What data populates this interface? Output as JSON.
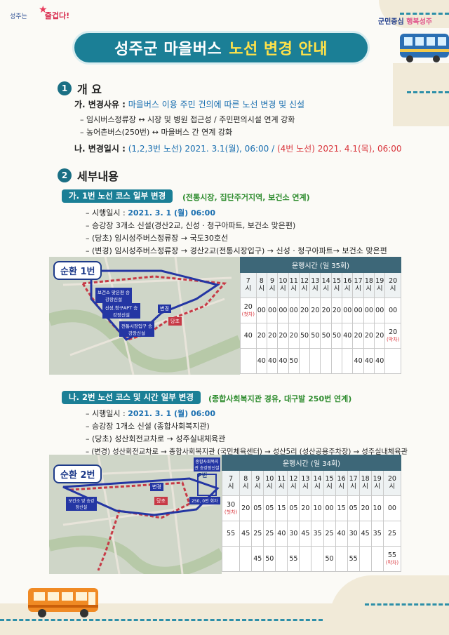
{
  "logo_left": {
    "text1": "성주는",
    "text2": "즐겁다!"
  },
  "logo_right": {
    "part1": "군민중심",
    "part2": "행복성주"
  },
  "title": {
    "part1": "성주군 마을버스",
    "part2": "노선 변경 안내"
  },
  "section1": {
    "num": "1",
    "heading": "개  요",
    "reason_label": "가. 변경사유 :",
    "reason_text": "마을버스 이용 주민 건의에 따른 노선 변경 및 신설",
    "bullets": [
      "– 임시버스정류장 ↔ 시장 및 병원 접근성 / 주민편의시설 연계 강화",
      "– 농어촌버스(250번)  ↔ 마을버스 간 연계 강화"
    ],
    "date_label": "나. 변경일시 :",
    "date_part1": "(1,2,3번 노선) 2021. 3.1(월), 06:00 /",
    "date_part2": "(4번 노선) 2021. 4.1(목), 06:00"
  },
  "section2": {
    "num": "2",
    "heading": "세부내용",
    "route1": {
      "pill": "가. 1번 노선 코스 일부 변경",
      "note": "(전통시장, 집단주거지역, 보건소 연계)",
      "date_prefix": "– 시행일시 :",
      "date_value": "2021. 3. 1 (월) 06:00",
      "bullets": [
        "– 승강장 3개소 신설(경산2교, 신성 · 청구아파트, 보건소 맞은편)",
        "– (당초) 임시성주버스정류장 → 국도30호선",
        "– (변경) 임시성주버스정류장 → 경산2교(전통시장입구) → 신성 · 청구아파트→ 보건소 맞은편"
      ],
      "map_title": "순환 1번",
      "map_tags": [
        "보건소 맞은편 승강장신설",
        "신성,청구APT 승강장신설",
        "전통시장입구 승강장신설",
        "변경",
        "당초"
      ],
      "schedule_title": "운행시간 (일 35회)",
      "hours": [
        "7\n시",
        "8\n시",
        "9\n시",
        "10\n시",
        "11\n시",
        "12\n시",
        "13\n시",
        "14\n시",
        "15\n시",
        "16\n시",
        "17\n시",
        "18\n시",
        "19\n시",
        "20\n시"
      ],
      "rows": [
        [
          "20",
          "00",
          "00",
          "00",
          "00",
          "20",
          "20",
          "20",
          "20",
          "00",
          "00",
          "00",
          "00",
          "00"
        ],
        [
          "40",
          "20",
          "20",
          "20",
          "20",
          "50",
          "50",
          "50",
          "50",
          "40",
          "20",
          "20",
          "20",
          "20"
        ],
        [
          "",
          "40",
          "40",
          "40",
          "50",
          "",
          "",
          "",
          "",
          "",
          "40",
          "40",
          "40",
          ""
        ]
      ],
      "first_note": "(첫차)",
      "last_note": "(막차)"
    },
    "route2": {
      "pill": "나. 2번 노선 코스 및 시간 일부 변경",
      "note": "(종합사회복지관 경유, 대구발 250번 연계)",
      "date_prefix": "– 시행일시 :",
      "date_value": "2021. 3. 1 (월) 06:00",
      "bullets": [
        "– 승강장 1개소 신설 (종합사회복지관)",
        "– (당초) 성산회전교차로 → 성주실내체육관",
        "– (변경) 성산회전교차로 → 종합사회복지관 (국민체육센터) → 성산5리 (성산공용주차장) → 성주실내체육관"
      ],
      "map_title": "순환 2번",
      "map_tags": [
        "종합사회복지관 승강장신설",
        "변경",
        "P번",
        "보건소 맞 승강장신설",
        "당초",
        "250, 0번 회차"
      ],
      "schedule_title": "운행시간 (일 34회)",
      "hours": [
        "7\n시",
        "8\n시",
        "9\n시",
        "10\n시",
        "11\n시",
        "12\n시",
        "13\n시",
        "14\n시",
        "15\n시",
        "16\n시",
        "17\n시",
        "18\n시",
        "19\n시",
        "20\n시"
      ],
      "rows": [
        [
          "30",
          "20",
          "05",
          "05",
          "15",
          "05",
          "20",
          "10",
          "00",
          "15",
          "05",
          "20",
          "10",
          "00"
        ],
        [
          "55",
          "45",
          "25",
          "25",
          "40",
          "30",
          "45",
          "35",
          "25",
          "40",
          "30",
          "45",
          "35",
          "25"
        ],
        [
          "",
          "",
          "45",
          "50",
          "",
          "55",
          "",
          "",
          "50",
          "",
          "55",
          "",
          "",
          "55"
        ]
      ],
      "first_note": "(첫차)",
      "last_note": "(막차)"
    }
  },
  "colors": {
    "teal": "#1b7f96",
    "yellow": "#ffe24a",
    "red": "#d9343b",
    "blue": "#1a6fb0",
    "green": "#2e8c2e"
  },
  "icons": {
    "bus_right": "bus-icon",
    "bus_left": "bus-icon",
    "star": "star-icon"
  }
}
